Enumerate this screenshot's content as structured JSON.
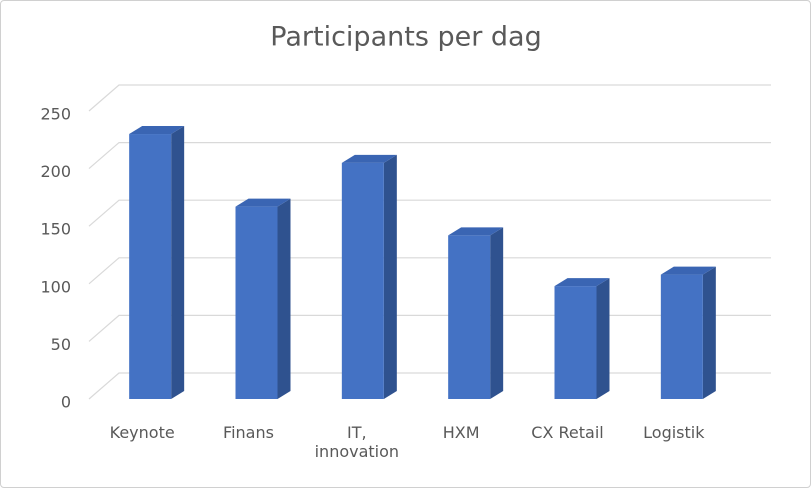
{
  "chart_data": {
    "type": "bar3d",
    "title": "Participants  per dag",
    "categories": [
      "Keynote",
      "Finans",
      "IT, innovation",
      "HXM",
      "CX Retail",
      "Logistik"
    ],
    "values": [
      230,
      167,
      205,
      142,
      98,
      108
    ],
    "color": "#4472c4",
    "ylim": [
      0,
      250
    ],
    "yticks": [
      0,
      50,
      100,
      150,
      200,
      250
    ],
    "grid": true
  }
}
